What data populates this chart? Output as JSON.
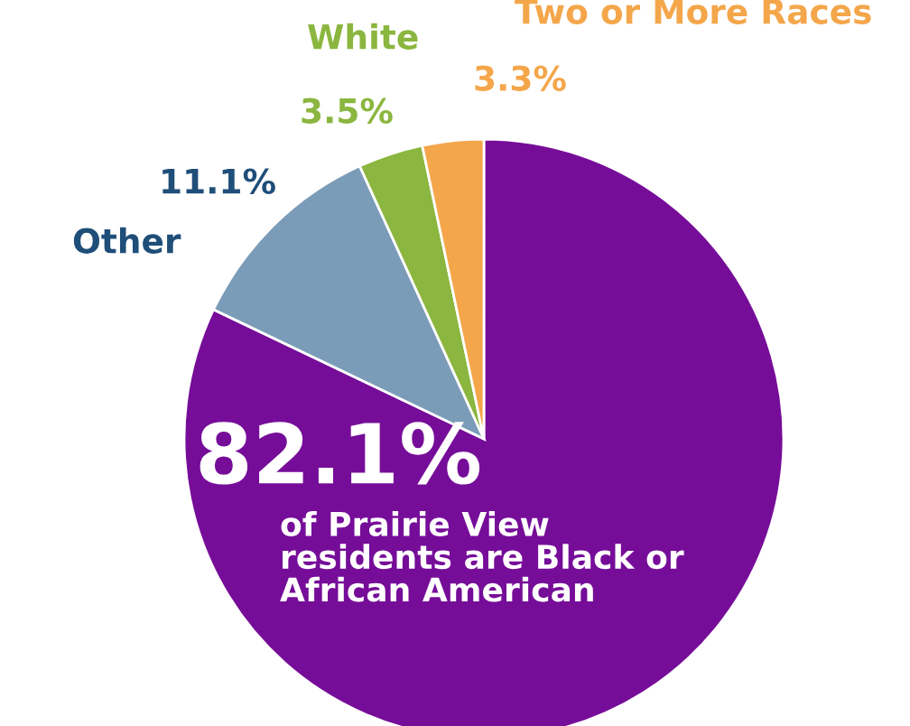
{
  "chart_data": {
    "type": "pie",
    "categories": [
      "of Prairie View residents are Black or African American",
      "Other",
      "White",
      "Two or More Races"
    ],
    "values": [
      82.1,
      11.1,
      3.5,
      3.3
    ],
    "value_labels": [
      "82.1%",
      "11.1%",
      "3.5%",
      "3.3%"
    ],
    "colors": [
      "#760d99",
      "#7b9cb8",
      "#8bb63f",
      "#f4a64a"
    ],
    "legend": false
  }
}
